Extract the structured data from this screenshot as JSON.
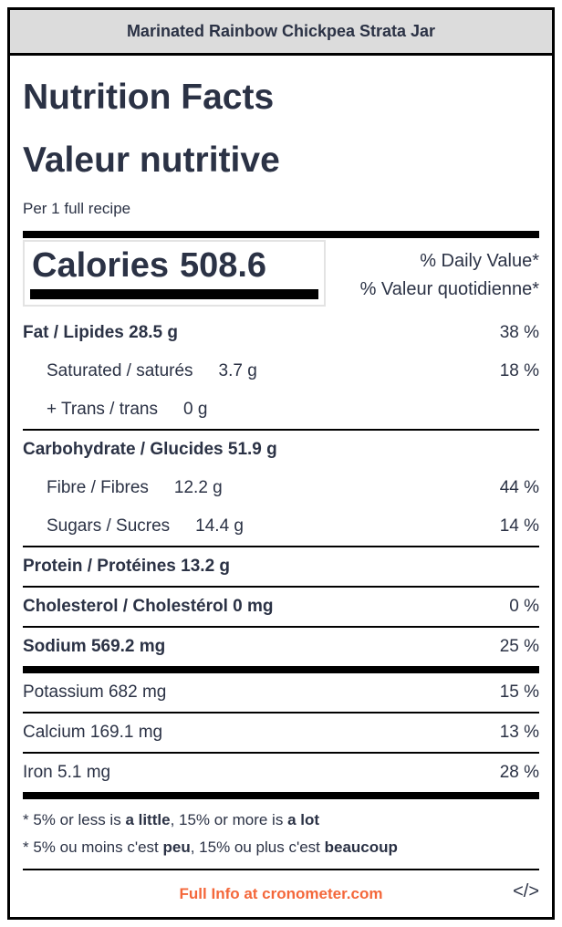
{
  "header": {
    "title": "Marinated Rainbow Chickpea Strata Jar"
  },
  "label": {
    "title_en": "Nutrition Facts",
    "title_fr": "Valeur nutritive",
    "serving": "Per 1 full recipe",
    "calories": {
      "label": "Calories",
      "value": "508.6"
    },
    "daily_value": {
      "line1": "% Daily Value*",
      "line2": "% Valeur quotidienne*"
    },
    "rows": [
      {
        "name": "Fat / Lipides 28.5 g",
        "amount": "",
        "percent": "38 %"
      },
      {
        "name": "Saturated / saturés",
        "amount": "3.7 g",
        "percent": "18 %"
      },
      {
        "name": "+ Trans / trans",
        "amount": "0 g",
        "percent": ""
      },
      {
        "name": "Carbohydrate / Glucides 51.9 g",
        "amount": "",
        "percent": ""
      },
      {
        "name": "Fibre / Fibres",
        "amount": "12.2 g",
        "percent": "44 %"
      },
      {
        "name": "Sugars / Sucres",
        "amount": "14.4 g",
        "percent": "14 %"
      },
      {
        "name": "Protein / Protéines 13.2 g",
        "amount": "",
        "percent": ""
      },
      {
        "name": "Cholesterol / Cholestérol 0 mg",
        "amount": "",
        "percent": "0 %"
      },
      {
        "name": "Sodium 569.2 mg",
        "amount": "",
        "percent": "25 %"
      },
      {
        "name": "Potassium 682 mg",
        "amount": "",
        "percent": "15 %"
      },
      {
        "name": "Calcium 169.1 mg",
        "amount": "",
        "percent": "13 %"
      },
      {
        "name": "Iron 5.1 mg",
        "amount": "",
        "percent": "28 %"
      }
    ],
    "footnote_en": {
      "p0": "* 5% or less is ",
      "b1": "a little",
      "p1": ", 15% or more is ",
      "b2": "a lot"
    },
    "footnote_fr": {
      "p0": "* 5% ou moins c'est ",
      "b1": "peu",
      "p1": ", 15% ou plus c'est ",
      "b2": "beaucoup"
    },
    "footer": {
      "link": "Full Info at cronometer.com",
      "code_icon": "</>"
    }
  },
  "colors": {
    "text": "#2b3245",
    "accent_orange": "#f4673a",
    "header_bg": "#dcdcdc",
    "rule": "#000000",
    "calories_box_border": "#e3e3e3"
  }
}
